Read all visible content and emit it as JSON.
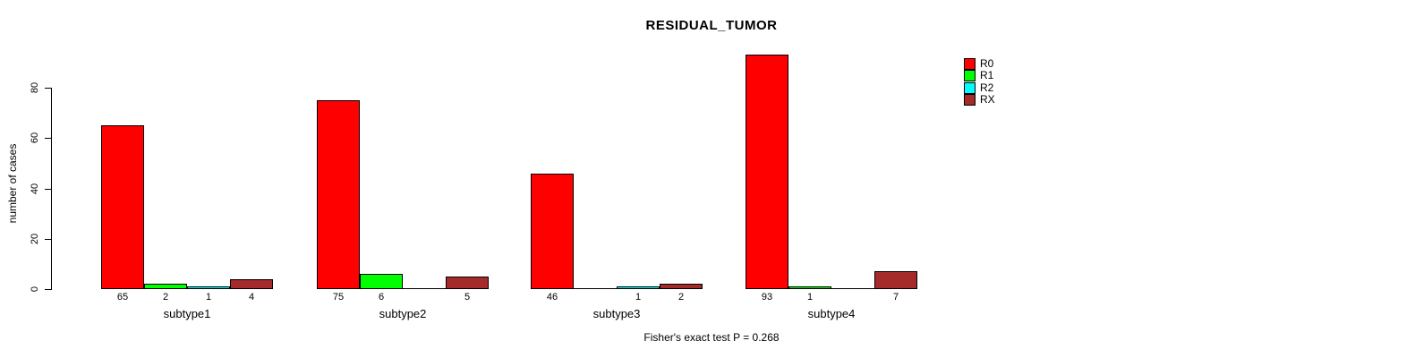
{
  "title": "RESIDUAL_TUMOR",
  "footer": "Fisher's exact test P = 0.268",
  "chart_data": {
    "type": "bar",
    "grouped": true,
    "title": "RESIDUAL_TUMOR",
    "xlabel": "",
    "ylabel": "number of cases",
    "categories": [
      "subtype1",
      "subtype2",
      "subtype3",
      "subtype4"
    ],
    "series": [
      {
        "name": "R0",
        "color": "#FF0000",
        "values": [
          65,
          75,
          46,
          93
        ]
      },
      {
        "name": "R1",
        "color": "#00FF00",
        "values": [
          2,
          6,
          0,
          1
        ]
      },
      {
        "name": "R2",
        "color": "#00FFFF",
        "values": [
          1,
          0,
          1,
          0
        ]
      },
      {
        "name": "RX",
        "color": "#A52A2A",
        "values": [
          4,
          5,
          2,
          7
        ]
      }
    ],
    "yticks": [
      0,
      20,
      40,
      60,
      80
    ],
    "ylim": [
      0,
      93
    ],
    "grid": false,
    "legend_position": "top-right",
    "bar_value_labels_shown": true,
    "zero_bars_drawn_as_baseline": true,
    "annotation": "Fisher's exact test P = 0.268"
  }
}
